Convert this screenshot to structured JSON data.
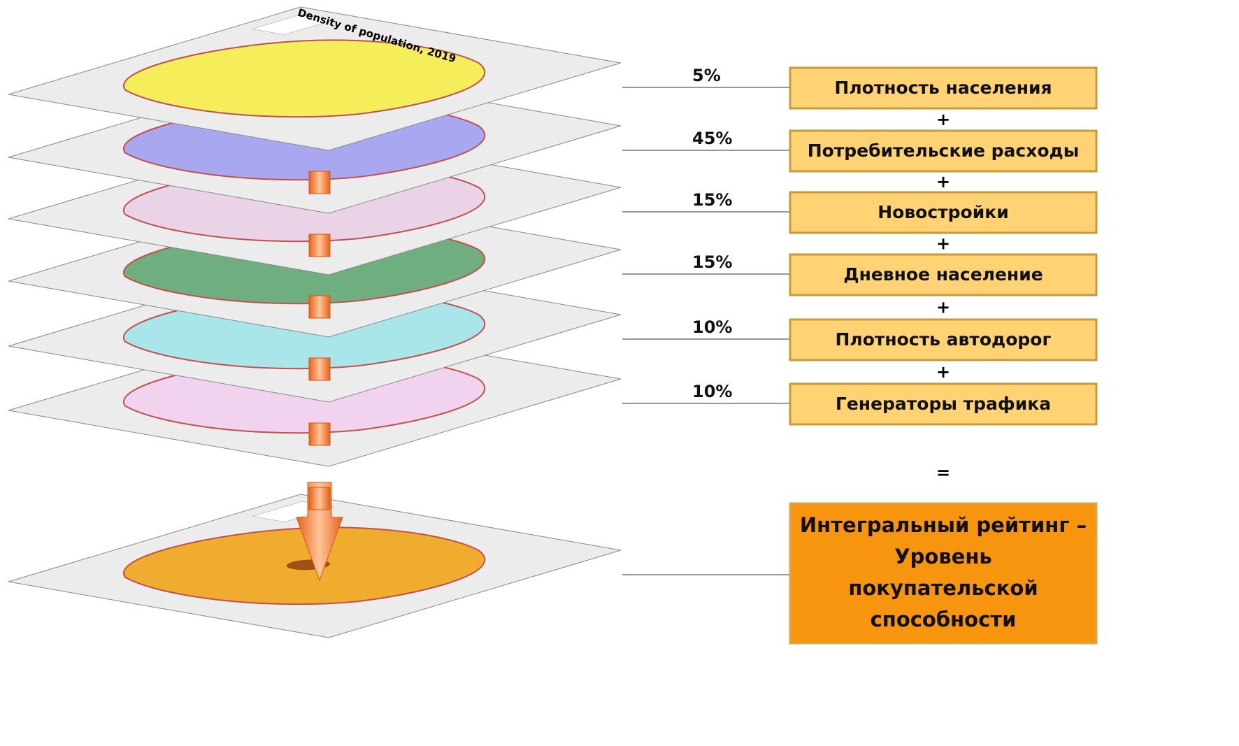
{
  "map_title": "Density of population, 2019",
  "layers": [
    {
      "weight": "5%",
      "label": "Плотность населения",
      "color": "#f5ee5a"
    },
    {
      "weight": "45%",
      "label": "Потребительские расходы",
      "color": "#a9a7ef"
    },
    {
      "weight": "15%",
      "label": "Новостройки",
      "color": "#ead3e6"
    },
    {
      "weight": "15%",
      "label": "Дневное население",
      "color": "#6fae7e"
    },
    {
      "weight": "10%",
      "label": "Плотность автодорог",
      "color": "#a9e6ea"
    },
    {
      "weight": "10%",
      "label": "Генераторы трафика",
      "color": "#f1d3ef"
    }
  ],
  "operators": {
    "plus": "+",
    "equals": "="
  },
  "result": {
    "lines": [
      "Интегральный рейтинг –",
      "Уровень",
      "покупательской",
      "способности"
    ],
    "color": "#f0ac2e"
  }
}
